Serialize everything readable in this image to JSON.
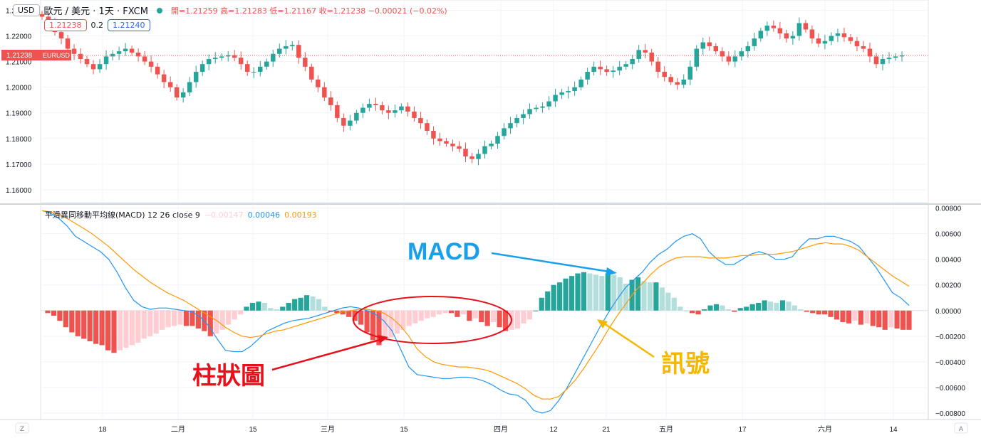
{
  "header": {
    "currency_badge": "USD",
    "symbol_title": "歐元 / 美元 · 1天 · FXCM",
    "ohlc": "開=1.21259 高=1.21283 低=1.21167 收=1.21238 −0.00021 (−0.02%)",
    "bid": "1.21238",
    "spread": "0.2",
    "ask": "1.21240"
  },
  "macd_legend": {
    "title": "平滑異同移動平均線(MACD) 12 26 close 9",
    "hist_value": "−0.00147",
    "macd_value": "0.00046",
    "signal_value": "0.00193"
  },
  "price_axis": {
    "ticks": [
      "1.23000",
      "1.22000",
      "1.21000",
      "1.20000",
      "1.19000",
      "1.18000",
      "1.17000",
      "1.16000"
    ],
    "last_price_label": "1.21238",
    "last_price_symbol": "EURUSD",
    "last_price": 1.21238
  },
  "macd_axis": {
    "ticks": [
      "0.00800",
      "0.00600",
      "0.00400",
      "0.00200",
      "0.00000",
      "−0.00200",
      "−0.00400",
      "−0.00600",
      "−0.00800"
    ]
  },
  "time_axis": {
    "labels": [
      "18",
      "二月",
      "15",
      "三月",
      "15",
      "四月",
      "12",
      "21",
      "五月",
      "17",
      "六月",
      "14"
    ]
  },
  "annotations": {
    "macd": "MACD",
    "signal": "訊號",
    "histogram": "柱狀圖"
  },
  "colors": {
    "up": "#26a69a",
    "down": "#ef5350",
    "macd": "#2196f3",
    "signal": "#ff9800",
    "hist_up_strong": "#26a69a",
    "hist_up_weak": "#b2dfdb",
    "hist_down_strong": "#ef5350",
    "hist_down_weak": "#ffcdd2",
    "annot_blue": "#1aa0e8",
    "annot_red": "#e8101a",
    "annot_yellow": "#f5b800"
  },
  "corner_buttons": {
    "left": "Z",
    "right": "A"
  },
  "chart_data": [
    {
      "type": "candlestick",
      "symbol": "EURUSD",
      "close_path": [
        1.2275,
        1.225,
        1.2215,
        1.219,
        1.215,
        1.213,
        1.211,
        1.209,
        1.207,
        1.209,
        1.212,
        1.213,
        1.214,
        1.215,
        1.2135,
        1.212,
        1.21,
        1.208,
        1.205,
        1.202,
        1.2,
        1.196,
        1.198,
        1.202,
        1.206,
        1.209,
        1.211,
        1.2115,
        1.212,
        1.2125,
        1.2115,
        1.209,
        1.206,
        1.206,
        1.208,
        1.21,
        1.213,
        1.215,
        1.216,
        1.2165,
        1.2115,
        1.208,
        1.203,
        1.2,
        1.196,
        1.193,
        1.188,
        1.185,
        1.187,
        1.19,
        1.192,
        1.1935,
        1.193,
        1.191,
        1.19,
        1.191,
        1.1925,
        1.1905,
        1.188,
        1.186,
        1.183,
        1.18,
        1.179,
        1.178,
        1.177,
        1.176,
        1.173,
        1.172,
        1.174,
        1.177,
        1.178,
        1.181,
        1.184,
        1.186,
        1.188,
        1.1895,
        1.1915,
        1.192,
        1.1925,
        1.1945,
        1.197,
        1.198,
        1.1985,
        1.2,
        1.203,
        1.206,
        1.208,
        1.207,
        1.206,
        1.2065,
        1.208,
        1.209,
        1.211,
        1.2145,
        1.2135,
        1.21,
        1.206,
        1.204,
        1.202,
        1.201,
        1.203,
        1.208,
        1.215,
        1.2175,
        1.216,
        1.214,
        1.212,
        1.21,
        1.212,
        1.214,
        1.216,
        1.219,
        1.222,
        1.224,
        1.223,
        1.221,
        1.219,
        1.22,
        1.225,
        1.2225,
        1.219,
        1.217,
        1.218,
        1.22,
        1.221,
        1.2195,
        1.218,
        1.216,
        1.215,
        1.212,
        1.209,
        1.211,
        1.2115,
        1.212,
        1.21238
      ],
      "last": 1.21238,
      "ylim": [
        1.155,
        1.234
      ]
    },
    {
      "type": "line",
      "series": [
        {
          "name": "MACD",
          "values": [
            0.0078,
            0.0076,
            0.0072,
            0.0066,
            0.0058,
            0.0054,
            0.005,
            0.0046,
            0.004,
            0.003,
            0.0018,
            0.0008,
            0.0003,
            0.0001,
            0.0002,
            0.0002,
            0.0001,
            0.0,
            -0.0001,
            -0.0005,
            -0.0012,
            -0.0022,
            -0.0031,
            -0.0032,
            -0.0032,
            -0.0028,
            -0.0022,
            -0.0016,
            -0.0013,
            -0.001,
            -0.0008,
            -0.0007,
            -0.0006,
            -0.0004,
            -0.0002,
            0.0,
            0.0002,
            0.0003,
            0.0002,
            0.0,
            -0.0003,
            -0.0008,
            -0.0016,
            -0.003,
            -0.0044,
            -0.005,
            -0.0051,
            -0.0052,
            -0.0053,
            -0.0053,
            -0.0052,
            -0.0052,
            -0.0053,
            -0.0055,
            -0.0058,
            -0.0062,
            -0.0065,
            -0.0066,
            -0.007,
            -0.0078,
            -0.008,
            -0.0078,
            -0.007,
            -0.006,
            -0.0048,
            -0.0036,
            -0.0024,
            -0.0012,
            -0.0001,
            0.0009,
            0.0018,
            0.0024,
            0.003,
            0.0038,
            0.0044,
            0.0048,
            0.0054,
            0.0058,
            0.006,
            0.0056,
            0.0046,
            0.004,
            0.0036,
            0.0036,
            0.004,
            0.0044,
            0.0046,
            0.0044,
            0.004,
            0.004,
            0.0042,
            0.005,
            0.0056,
            0.0056,
            0.0058,
            0.0058,
            0.0056,
            0.0054,
            0.005,
            0.0042,
            0.0034,
            0.0024,
            0.0014,
            0.001,
            0.0004
          ]
        },
        {
          "name": "訊號",
          "values": [
            0.0078,
            0.0077,
            0.0075,
            0.0072,
            0.0068,
            0.0064,
            0.006,
            0.0055,
            0.005,
            0.0044,
            0.0038,
            0.0032,
            0.0027,
            0.0022,
            0.0018,
            0.0014,
            0.0011,
            0.0008,
            0.0004,
            0.0,
            -0.0004,
            -0.0008,
            -0.0013,
            -0.0017,
            -0.002,
            -0.0021,
            -0.002,
            -0.0018,
            -0.0016,
            -0.0015,
            -0.0013,
            -0.0011,
            -0.0009,
            -0.0007,
            -0.0005,
            -0.0003,
            -0.0001,
            0.0,
            0.0001,
            0.0001,
            0.0,
            -0.0002,
            -0.0006,
            -0.0012,
            -0.002,
            -0.003,
            -0.0036,
            -0.004,
            -0.0042,
            -0.0043,
            -0.0044,
            -0.0044,
            -0.0045,
            -0.0046,
            -0.0048,
            -0.0051,
            -0.0054,
            -0.0057,
            -0.0061,
            -0.0066,
            -0.0069,
            -0.0069,
            -0.0067,
            -0.0061,
            -0.0054,
            -0.0045,
            -0.0035,
            -0.0025,
            -0.0014,
            -0.0004,
            0.0005,
            0.0014,
            0.0021,
            0.0028,
            0.0034,
            0.0038,
            0.0041,
            0.0042,
            0.0042,
            0.0042,
            0.0041,
            0.0041,
            0.0041,
            0.0042,
            0.0043,
            0.0043,
            0.0044,
            0.0044,
            0.0044,
            0.0045,
            0.0046,
            0.0048,
            0.005,
            0.0052,
            0.0053,
            0.0052,
            0.0052,
            0.005,
            0.0047,
            0.0042,
            0.0037,
            0.0032,
            0.0027,
            0.0023,
            0.0019
          ]
        }
      ],
      "ylim": [
        -0.0085,
        0.0082
      ]
    },
    {
      "type": "bar",
      "values": [
        -0.0002,
        -0.0004,
        -0.0008,
        -0.0013,
        -0.0017,
        -0.002,
        -0.0022,
        -0.0024,
        -0.0026,
        -0.0027,
        -0.0031,
        -0.0033,
        -0.0031,
        -0.0029,
        -0.0027,
        -0.0025,
        -0.0022,
        -0.002,
        -0.0018,
        -0.0015,
        -0.0013,
        -0.0012,
        -0.0011,
        -0.0012,
        -0.0012,
        -0.0014,
        -0.0016,
        -0.002,
        -0.0018,
        -0.0015,
        -0.0011,
        -0.0007,
        -0.0003,
        0.0003,
        0.0006,
        0.0007,
        0.0006,
        0.0002,
        0.0001,
        0.0003,
        0.0006,
        0.0009,
        0.001,
        0.0012,
        0.0011,
        0.0009,
        0.0003,
        -0.0001,
        -0.0002,
        -0.0003,
        -0.0005,
        -0.0008,
        -0.0011,
        -0.0017,
        -0.0023,
        -0.0027,
        -0.0024,
        -0.0021,
        -0.0018,
        -0.0015,
        -0.0012,
        -0.001,
        -0.0008,
        -0.0006,
        -0.0005,
        -0.0003,
        -0.0002,
        -0.0002,
        -0.0005,
        -0.0003,
        -0.0008,
        -0.0006,
        -0.0009,
        -0.0012,
        -0.0009,
        -0.0013,
        -0.0016,
        -0.0015,
        -0.0014,
        -0.001,
        -0.0007,
        0.0,
        0.001,
        0.0015,
        0.002,
        0.0022,
        0.0025,
        0.0027,
        0.0029,
        0.003,
        0.0029,
        0.0028,
        0.0027,
        0.0029,
        0.0028,
        0.0026,
        0.0021,
        0.0024,
        0.0026,
        0.0023,
        0.0022,
        0.0022,
        0.0018,
        0.0014,
        0.001,
        0.0003,
        0.0,
        -0.0002,
        -0.0003,
        0.0001,
        0.0004,
        0.0005,
        0.0004,
        0.0001,
        -0.0001,
        0.0002,
        0.0003,
        0.0005,
        0.0006,
        0.0008,
        0.0007,
        0.0006,
        0.0008,
        0.0007,
        0.0004,
        0.0001,
        -0.0001,
        -0.0002,
        -0.0003,
        -0.0003,
        -0.0005,
        -0.0007,
        -0.0009,
        -0.001,
        -0.0008,
        -0.0011,
        -0.001,
        -0.0012,
        -0.0013,
        -0.0015,
        -0.0013,
        -0.0014,
        -0.0015,
        -0.0015
      ]
    }
  ]
}
